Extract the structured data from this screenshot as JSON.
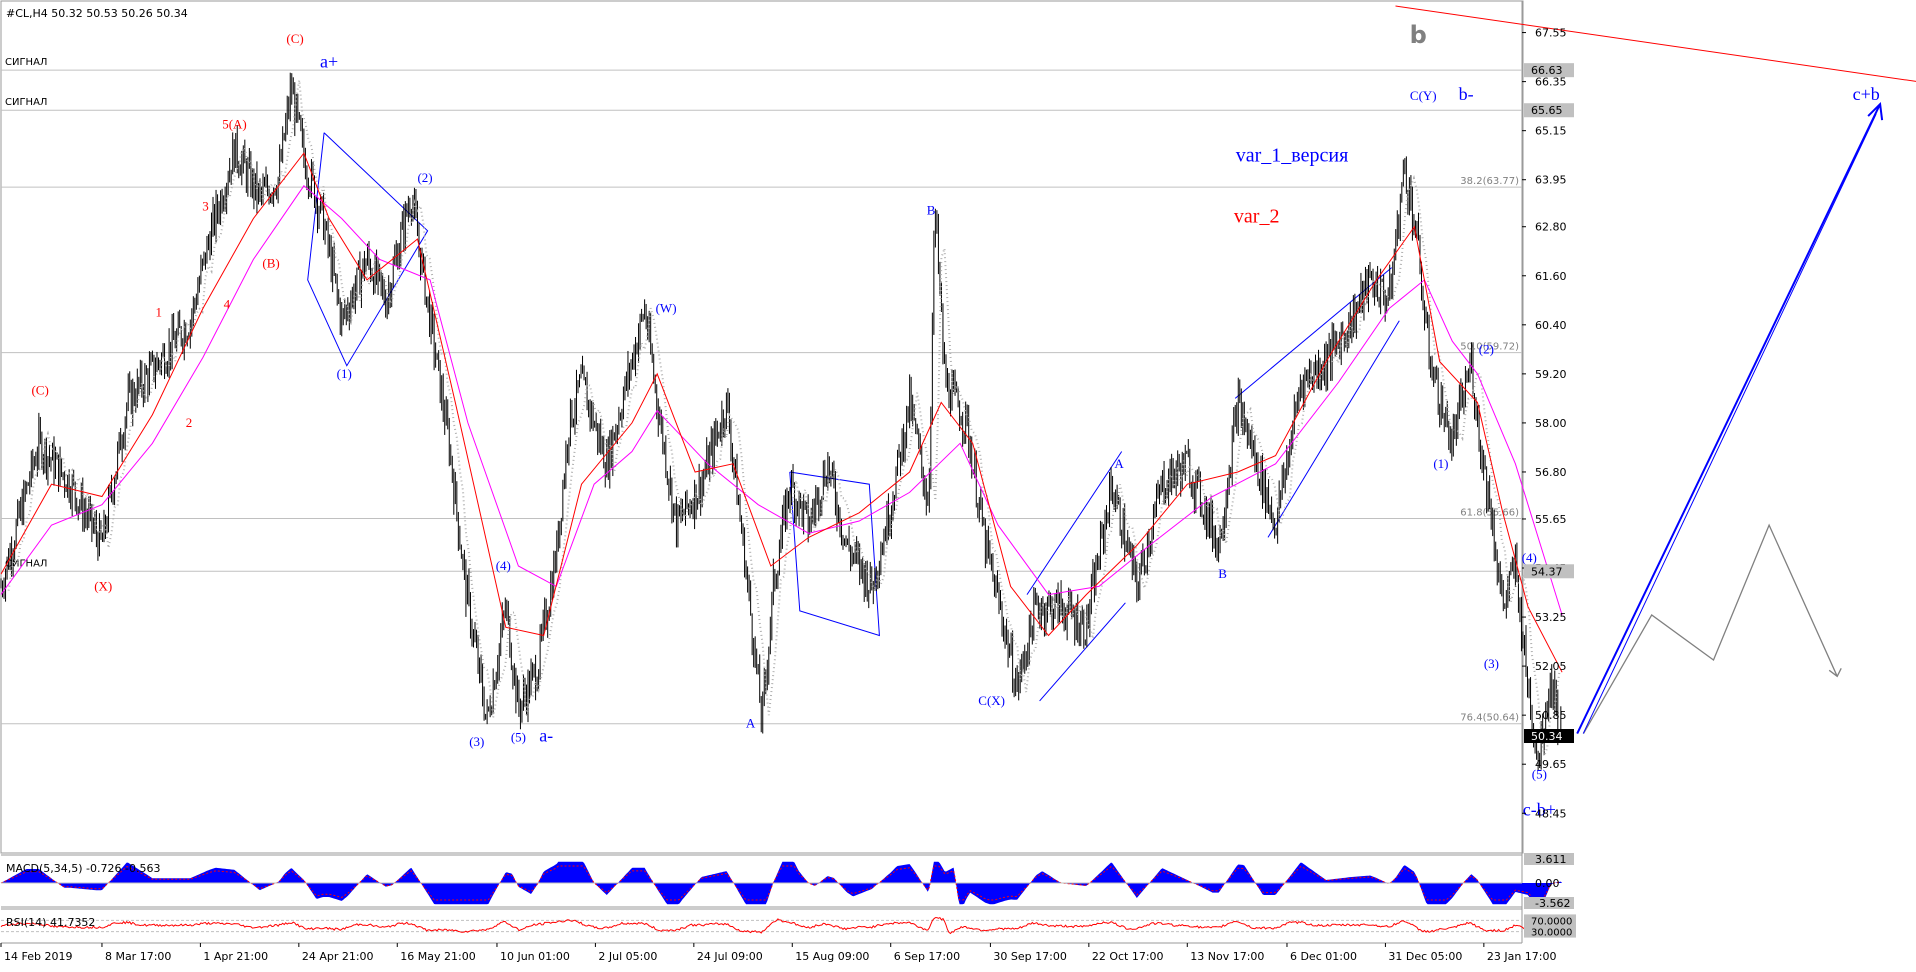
{
  "header": {
    "symbol_line": "#CL,H4  50.32 50.53 50.26 50.34"
  },
  "colors": {
    "candle": "#000000",
    "ma_fast": "#ff0000",
    "ma_slow": "#ff00ff",
    "wave_blue": "#0000ff",
    "wave_red": "#ff0000",
    "level_line": "#c0c0c0",
    "trend_red": "#ff0000",
    "forecast": "#808080",
    "price_box_bg": "#000000"
  },
  "chart_data": [
    {
      "type": "line",
      "name": "main-price",
      "ylim": [
        47.6,
        68.2
      ],
      "xlim": [
        0,
        1512
      ],
      "y_ticks": [
        "67.55",
        "66.35",
        "65.15",
        "63.95",
        "62.80",
        "61.60",
        "60.40",
        "59.20",
        "58.00",
        "56.80",
        "55.65",
        "54.45",
        "53.25",
        "52.05",
        "50.85",
        "49.65",
        "48.45"
      ],
      "x_tick_labels": [
        {
          "x": 0,
          "label": "14 Feb 2019"
        },
        {
          "x": 80,
          "label": "8 Mar 17:00"
        },
        {
          "x": 158,
          "label": "1 Apr 21:00"
        },
        {
          "x": 236,
          "label": "24 Apr 21:00"
        },
        {
          "x": 314,
          "label": "16 May 21:00"
        },
        {
          "x": 393,
          "label": "10 Jun 01:00"
        },
        {
          "x": 471,
          "label": "2 Jul 05:00"
        },
        {
          "x": 549,
          "label": "24 Jul 09:00"
        },
        {
          "x": 627,
          "label": "15 Aug 09:00"
        },
        {
          "x": 705,
          "label": "6 Sep 17:00"
        },
        {
          "x": 784,
          "label": "30 Sep 17:00"
        },
        {
          "x": 862,
          "label": "22 Oct 17:00"
        },
        {
          "x": 940,
          "label": "13 Nov 17:00"
        },
        {
          "x": 1019,
          "label": "6 Dec 01:00"
        },
        {
          "x": 1097,
          "label": "31 Dec 05:00"
        },
        {
          "x": 1175,
          "label": "23 Jan 17:00"
        }
      ],
      "price_path": [
        [
          0,
          54.0
        ],
        [
          30,
          57.5
        ],
        [
          55,
          56.5
        ],
        [
          80,
          55.0
        ],
        [
          100,
          58.5
        ],
        [
          125,
          59.5
        ],
        [
          150,
          60.5
        ],
        [
          165,
          62.5
        ],
        [
          185,
          64.7
        ],
        [
          205,
          63.5
        ],
        [
          220,
          64.0
        ],
        [
          230,
          66.2
        ],
        [
          240,
          64.5
        ],
        [
          255,
          63.0
        ],
        [
          270,
          60.5
        ],
        [
          290,
          62.0
        ],
        [
          305,
          61.0
        ],
        [
          325,
          63.6
        ],
        [
          340,
          60.5
        ],
        [
          355,
          57.5
        ],
        [
          368,
          54.0
        ],
        [
          385,
          50.7
        ],
        [
          400,
          53.5
        ],
        [
          410,
          51.0
        ],
        [
          425,
          52.0
        ],
        [
          440,
          54.8
        ],
        [
          450,
          58.0
        ],
        [
          460,
          59.0
        ],
        [
          480,
          57.0
        ],
        [
          510,
          60.8
        ],
        [
          520,
          58.5
        ],
        [
          535,
          55.5
        ],
        [
          555,
          56.5
        ],
        [
          575,
          58.5
        ],
        [
          590,
          54.5
        ],
        [
          603,
          50.7
        ],
        [
          612,
          54.0
        ],
        [
          625,
          56.5
        ],
        [
          640,
          55.5
        ],
        [
          655,
          57.0
        ],
        [
          670,
          55.0
        ],
        [
          690,
          54.0
        ],
        [
          705,
          56.0
        ],
        [
          720,
          58.5
        ],
        [
          735,
          56.0
        ],
        [
          740,
          63.3
        ],
        [
          748,
          59.0
        ],
        [
          765,
          58.0
        ],
        [
          780,
          55.0
        ],
        [
          795,
          53.0
        ],
        [
          805,
          51.5
        ],
        [
          820,
          53.5
        ],
        [
          840,
          53.5
        ],
        [
          860,
          53.0
        ],
        [
          880,
          56.5
        ],
        [
          900,
          54.0
        ],
        [
          920,
          56.5
        ],
        [
          940,
          57.0
        ],
        [
          965,
          55.0
        ],
        [
          980,
          58.5
        ],
        [
          1000,
          56.5
        ],
        [
          1010,
          55.5
        ],
        [
          1030,
          59.0
        ],
        [
          1050,
          59.5
        ],
        [
          1070,
          60.5
        ],
        [
          1085,
          61.5
        ],
        [
          1100,
          61.0
        ],
        [
          1112,
          64.3
        ],
        [
          1122,
          62.5
        ],
        [
          1130,
          60.0
        ],
        [
          1140,
          58.5
        ],
        [
          1150,
          57.5
        ],
        [
          1165,
          59.5
        ],
        [
          1172,
          57.5
        ],
        [
          1180,
          56.0
        ],
        [
          1190,
          53.5
        ],
        [
          1200,
          54.5
        ],
        [
          1210,
          51.5
        ],
        [
          1218,
          49.8
        ],
        [
          1228,
          51.8
        ],
        [
          1237,
          50.3
        ]
      ],
      "ma_fast_path": [
        [
          0,
          54.3
        ],
        [
          40,
          56.5
        ],
        [
          80,
          56.2
        ],
        [
          120,
          58.2
        ],
        [
          160,
          60.8
        ],
        [
          200,
          63.0
        ],
        [
          240,
          64.6
        ],
        [
          260,
          63.0
        ],
        [
          290,
          61.5
        ],
        [
          330,
          62.5
        ],
        [
          360,
          58.5
        ],
        [
          400,
          53.0
        ],
        [
          430,
          52.8
        ],
        [
          460,
          56.5
        ],
        [
          500,
          58.0
        ],
        [
          520,
          59.2
        ],
        [
          550,
          56.8
        ],
        [
          580,
          57.0
        ],
        [
          610,
          54.5
        ],
        [
          640,
          55.2
        ],
        [
          680,
          55.8
        ],
        [
          720,
          56.8
        ],
        [
          745,
          58.5
        ],
        [
          770,
          57.5
        ],
        [
          800,
          54.0
        ],
        [
          830,
          52.8
        ],
        [
          860,
          53.8
        ],
        [
          900,
          55.0
        ],
        [
          940,
          56.5
        ],
        [
          980,
          56.8
        ],
        [
          1010,
          57.2
        ],
        [
          1050,
          59.5
        ],
        [
          1090,
          61.5
        ],
        [
          1120,
          62.8
        ],
        [
          1140,
          59.5
        ],
        [
          1170,
          58.5
        ],
        [
          1190,
          55.8
        ],
        [
          1210,
          53.5
        ],
        [
          1237,
          51.9
        ]
      ],
      "ma_slow_path": [
        [
          0,
          53.8
        ],
        [
          40,
          55.5
        ],
        [
          80,
          56.0
        ],
        [
          120,
          57.5
        ],
        [
          160,
          59.6
        ],
        [
          200,
          62.0
        ],
        [
          240,
          63.8
        ],
        [
          270,
          63.0
        ],
        [
          300,
          62.0
        ],
        [
          340,
          61.5
        ],
        [
          370,
          58.0
        ],
        [
          410,
          54.5
        ],
        [
          440,
          54.0
        ],
        [
          470,
          56.5
        ],
        [
          500,
          57.3
        ],
        [
          520,
          58.3
        ],
        [
          560,
          57.0
        ],
        [
          600,
          56.0
        ],
        [
          640,
          55.3
        ],
        [
          680,
          55.6
        ],
        [
          720,
          56.3
        ],
        [
          760,
          57.5
        ],
        [
          790,
          55.5
        ],
        [
          830,
          53.8
        ],
        [
          870,
          54.0
        ],
        [
          910,
          55.0
        ],
        [
          960,
          56.2
        ],
        [
          1010,
          57.0
        ],
        [
          1060,
          59.0
        ],
        [
          1100,
          60.8
        ],
        [
          1128,
          61.5
        ],
        [
          1150,
          60.0
        ],
        [
          1170,
          59.2
        ],
        [
          1200,
          57.0
        ],
        [
          1237,
          53.3
        ]
      ],
      "horizontal_levels": [
        {
          "price": 66.63,
          "label": "СИГНАЛ"
        },
        {
          "price": 65.65,
          "label": "СИГНАЛ"
        },
        {
          "price": 63.77,
          "label": "38.2(63.77)"
        },
        {
          "price": 59.72,
          "label": "50.0(59.72)"
        },
        {
          "price": 55.66,
          "label": "61.8(55.66)"
        },
        {
          "price": 54.37,
          "label": "СИГНАЛ"
        },
        {
          "price": 50.64,
          "label": "76.4(50.64)"
        }
      ],
      "price_boxes": [
        "66.63",
        "65.65",
        "54.37",
        "50.34"
      ],
      "wave_labels_blue": [
        {
          "x": 260,
          "price": 66.7,
          "text": "a+"
        },
        {
          "x": 272,
          "price": 59.1,
          "text": "(1)"
        },
        {
          "x": 336,
          "price": 63.9,
          "text": "(2)"
        },
        {
          "x": 398,
          "price": 54.4,
          "text": "(4)"
        },
        {
          "x": 377,
          "price": 50.1,
          "text": "(3)"
        },
        {
          "x": 410,
          "price": 50.2,
          "text": "(5)"
        },
        {
          "x": 432,
          "price": 50.2,
          "text": "a-"
        },
        {
          "x": 527,
          "price": 60.7,
          "text": "(W)"
        },
        {
          "x": 594,
          "price": 50.55,
          "text": "A"
        },
        {
          "x": 737,
          "price": 63.1,
          "text": "B"
        },
        {
          "x": 886,
          "price": 56.9,
          "text": "A"
        },
        {
          "x": 968,
          "price": 54.2,
          "text": "B"
        },
        {
          "x": 785,
          "price": 51.1,
          "text": "C(X)"
        },
        {
          "x": 1127,
          "price": 65.9,
          "text": "C(Y)"
        },
        {
          "x": 1161,
          "price": 65.9,
          "text": "b-"
        },
        {
          "x": 1023,
          "price": 64.4,
          "text": "var_1_версия"
        },
        {
          "x": 1177,
          "price": 59.7,
          "text": "(2)"
        },
        {
          "x": 1141,
          "price": 56.9,
          "text": "(1)"
        },
        {
          "x": 1211,
          "price": 54.6,
          "text": "(4)"
        },
        {
          "x": 1181,
          "price": 52.0,
          "text": "(3)"
        },
        {
          "x": 1219,
          "price": 49.3,
          "text": "(5)"
        },
        {
          "x": 1219,
          "price": 48.4,
          "text": "c-b+"
        },
        {
          "x": 1478,
          "price": 65.9,
          "text": "c+b"
        }
      ],
      "wave_labels_red": [
        {
          "x": 233,
          "price": 67.3,
          "text": "(C)"
        },
        {
          "x": 185,
          "price": 65.2,
          "text": "5(A)"
        },
        {
          "x": 162,
          "price": 63.2,
          "text": "3"
        },
        {
          "x": 214,
          "price": 61.8,
          "text": "(B)"
        },
        {
          "x": 179,
          "price": 60.8,
          "text": "4"
        },
        {
          "x": 125,
          "price": 60.6,
          "text": "1"
        },
        {
          "x": 149,
          "price": 57.9,
          "text": "2"
        },
        {
          "x": 31,
          "price": 58.7,
          "text": "(C)"
        },
        {
          "x": 81,
          "price": 53.9,
          "text": "(X)"
        },
        {
          "x": 995,
          "price": 62.9,
          "text": "var_2"
        }
      ],
      "wave_label_gray": {
        "x": 1123,
        "price": 67.3,
        "text": "b"
      },
      "channels": [
        [
          [
            256,
            65.1
          ],
          [
            338,
            62.7
          ],
          [
            274,
            59.4
          ],
          [
            243,
            61.5
          ],
          [
            256,
            65.1
          ]
        ],
        [
          [
            625,
            56.8
          ],
          [
            688,
            56.5
          ],
          [
            696,
            52.8
          ],
          [
            633,
            53.4
          ],
          [
            625,
            56.8
          ]
        ],
        [
          [
            813,
            53.8
          ],
          [
            888,
            57.3
          ]
        ],
        [
          [
            823,
            51.2
          ],
          [
            891,
            53.6
          ]
        ],
        [
          [
            978,
            58.6
          ],
          [
            1102,
            61.8
          ]
        ],
        [
          [
            1004,
            55.2
          ],
          [
            1108,
            60.5
          ]
        ]
      ],
      "trend_red_line": [
        [
          1105,
          68.2
        ],
        [
          1530,
          66.3
        ]
      ],
      "forecast_blue_line": [
        [
          1249,
          50.4
        ],
        [
          1489,
          65.8
        ]
      ],
      "forecast_gray_path": [
        [
          1254,
          50.4
        ],
        [
          1308,
          53.3
        ],
        [
          1357,
          52.2
        ],
        [
          1401,
          55.5
        ],
        [
          1455,
          51.8
        ]
      ]
    },
    {
      "type": "area",
      "name": "macd",
      "title": "MACD(5,34,5) -0.726 -0.563",
      "ylim": [
        -3.562,
        3.611
      ],
      "y_ticks": [
        "3.611",
        "0.00",
        "-3.562"
      ]
    },
    {
      "type": "line",
      "name": "rsi",
      "title": "RSI(14) 41.7352",
      "ylim": [
        0,
        100
      ],
      "y_ticks": [
        "70.0000",
        "30.0000"
      ]
    }
  ]
}
